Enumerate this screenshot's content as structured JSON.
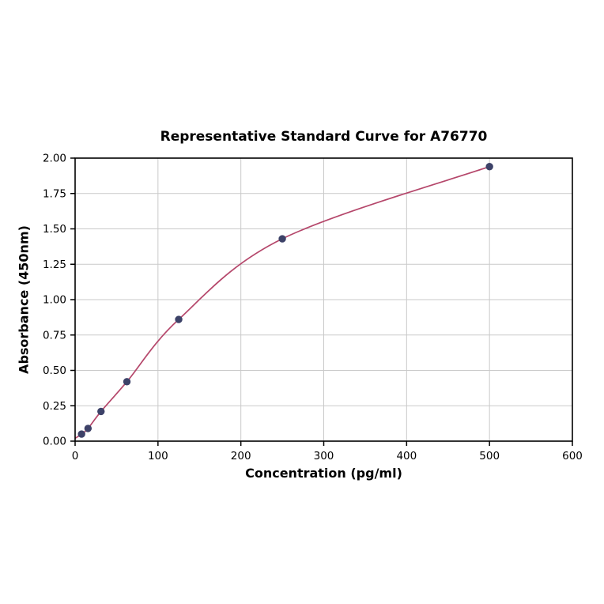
{
  "chart_data": {
    "type": "scatter",
    "title": "Representative Standard Curve for A76770",
    "xlabel": "Concentration (pg/ml)",
    "ylabel": "Absorbance (450nm)",
    "xlim": [
      0,
      600
    ],
    "ylim": [
      0.0,
      2.0
    ],
    "grid": true,
    "legend": "none",
    "xtick_values": [
      0,
      100,
      200,
      300,
      400,
      500,
      600
    ],
    "xtick_labels": [
      "0",
      "100",
      "200",
      "300",
      "400",
      "500",
      "600"
    ],
    "ytick_values": [
      0,
      0.25,
      0.5,
      0.75,
      1.0,
      1.25,
      1.5,
      1.75,
      2.0
    ],
    "ytick_labels": [
      "0.00",
      "0.25",
      "0.50",
      "0.75",
      "1.00",
      "1.25",
      "1.50",
      "1.75",
      "2.00"
    ],
    "points": {
      "x": [
        7.8,
        15.6,
        31.25,
        62.5,
        125,
        250,
        500
      ],
      "y": [
        0.05,
        0.09,
        0.21,
        0.42,
        0.86,
        1.43,
        1.94
      ]
    },
    "fit_curve_start": {
      "x": 0,
      "y": 0.02
    },
    "colors": {
      "curve": "#b5476b",
      "marker": "#3d4268",
      "grid": "#c9c9c9",
      "axis": "#000000",
      "background": "#ffffff"
    }
  }
}
